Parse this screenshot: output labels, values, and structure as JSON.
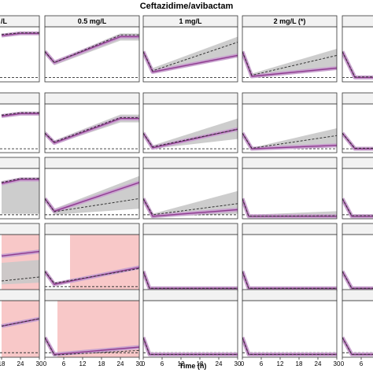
{
  "figure_title": "Ceftazidime/avibactam",
  "x_axis_label": "Time (h)",
  "column_labels": [
    "/L",
    "0.5 mg/L",
    "1 mg/L",
    "2 mg/L (*)",
    ""
  ],
  "colors": {
    "purple_band": "#c9a3cf",
    "purple_line": "#8e3a8f",
    "grey_band": "#c8c8c8",
    "dashed_line": "#333333",
    "red_shade": "#f8c8c8",
    "strip_bg": "#f2f2f2"
  },
  "chart_data": {
    "type": "line",
    "title": "Ceftazidime/avibactam",
    "xlabel": "Time (h)",
    "ylabel": "",
    "xlim": [
      0,
      30
    ],
    "x_ticks": [
      0,
      6,
      12,
      18,
      24,
      30
    ],
    "ylim": [
      0,
      1
    ],
    "grid": false,
    "columns": [
      "/L",
      "0.5 mg/L",
      "1 mg/L",
      "2 mg/L (*)",
      ""
    ],
    "rows": 5,
    "panels": [
      {
        "row": 0,
        "col": 0,
        "visible_from": 18,
        "purple": [
          [
            18,
            0.84
          ],
          [
            24,
            0.88
          ],
          [
            30,
            0.88
          ]
        ],
        "dashed": [
          [
            18,
            0.86
          ],
          [
            24,
            0.89
          ],
          [
            30,
            0.89
          ]
        ],
        "grey_upper": null,
        "grey_lower": null,
        "red_shade": null,
        "dashed_baseline": 0.08
      },
      {
        "row": 0,
        "col": 1,
        "purple": [
          [
            0,
            0.55
          ],
          [
            3,
            0.35
          ],
          [
            24,
            0.82
          ],
          [
            30,
            0.82
          ]
        ],
        "dashed": [
          [
            0,
            0.55
          ],
          [
            3,
            0.35
          ],
          [
            24,
            0.85
          ],
          [
            30,
            0.85
          ]
        ],
        "grey_upper": [
          [
            0,
            0.58
          ],
          [
            3,
            0.38
          ],
          [
            24,
            0.88
          ],
          [
            30,
            0.88
          ]
        ],
        "grey_lower": [
          [
            0,
            0.5
          ],
          [
            3,
            0.3
          ],
          [
            24,
            0.75
          ],
          [
            30,
            0.75
          ]
        ],
        "red_shade": null,
        "dashed_baseline": 0.08
      },
      {
        "row": 0,
        "col": 2,
        "purple": [
          [
            0,
            0.55
          ],
          [
            3,
            0.18
          ],
          [
            30,
            0.48
          ]
        ],
        "dashed": [
          [
            0,
            0.55
          ],
          [
            3,
            0.2
          ],
          [
            30,
            0.72
          ]
        ],
        "grey_upper": [
          [
            0,
            0.58
          ],
          [
            3,
            0.25
          ],
          [
            30,
            0.82
          ]
        ],
        "grey_lower": [
          [
            0,
            0.5
          ],
          [
            3,
            0.15
          ],
          [
            30,
            0.45
          ]
        ],
        "red_shade": null,
        "dashed_baseline": 0.08
      },
      {
        "row": 0,
        "col": 3,
        "purple": [
          [
            0,
            0.55
          ],
          [
            3,
            0.1
          ],
          [
            30,
            0.25
          ]
        ],
        "dashed": [
          [
            0,
            0.55
          ],
          [
            3,
            0.12
          ],
          [
            30,
            0.48
          ]
        ],
        "grey_upper": [
          [
            0,
            0.58
          ],
          [
            3,
            0.15
          ],
          [
            30,
            0.6
          ]
        ],
        "grey_lower": [
          [
            0,
            0.5
          ],
          [
            3,
            0.08
          ],
          [
            30,
            0.22
          ]
        ],
        "red_shade": null,
        "dashed_baseline": 0.08
      },
      {
        "row": 0,
        "col": 4,
        "visible_to": 12,
        "purple": [
          [
            0,
            0.55
          ],
          [
            4,
            0.08
          ],
          [
            12,
            0.08
          ]
        ],
        "dashed": [
          [
            0,
            0.55
          ],
          [
            4,
            0.09
          ],
          [
            12,
            0.09
          ]
        ],
        "grey_upper": null,
        "grey_lower": null,
        "red_shade": null,
        "dashed_baseline": 0.08
      },
      {
        "row": 1,
        "col": 0,
        "visible_from": 18,
        "purple": [
          [
            18,
            0.75
          ],
          [
            24,
            0.8
          ],
          [
            30,
            0.8
          ]
        ],
        "dashed": [
          [
            18,
            0.77
          ],
          [
            24,
            0.82
          ],
          [
            30,
            0.82
          ]
        ],
        "grey_upper": null,
        "grey_lower": null,
        "red_shade": null,
        "dashed_baseline": 0.08
      },
      {
        "row": 1,
        "col": 1,
        "purple": [
          [
            0,
            0.4
          ],
          [
            3,
            0.2
          ],
          [
            24,
            0.7
          ],
          [
            30,
            0.7
          ]
        ],
        "dashed": [
          [
            0,
            0.4
          ],
          [
            3,
            0.22
          ],
          [
            24,
            0.72
          ],
          [
            30,
            0.72
          ]
        ],
        "grey_upper": [
          [
            0,
            0.45
          ],
          [
            3,
            0.25
          ],
          [
            24,
            0.78
          ],
          [
            30,
            0.78
          ]
        ],
        "grey_lower": [
          [
            0,
            0.36
          ],
          [
            3,
            0.17
          ],
          [
            24,
            0.62
          ],
          [
            30,
            0.62
          ]
        ],
        "red_shade": null,
        "dashed_baseline": 0.08
      },
      {
        "row": 1,
        "col": 2,
        "purple": [
          [
            0,
            0.4
          ],
          [
            3,
            0.1
          ],
          [
            30,
            0.48
          ]
        ],
        "dashed": [
          [
            0,
            0.4
          ],
          [
            3,
            0.12
          ],
          [
            30,
            0.48
          ]
        ],
        "grey_upper": [
          [
            0,
            0.45
          ],
          [
            3,
            0.15
          ],
          [
            30,
            0.7
          ]
        ],
        "grey_lower": [
          [
            0,
            0.35
          ],
          [
            3,
            0.08
          ],
          [
            30,
            0.28
          ]
        ],
        "red_shade": null,
        "dashed_baseline": 0.08
      },
      {
        "row": 1,
        "col": 3,
        "purple": [
          [
            0,
            0.4
          ],
          [
            3,
            0.08
          ],
          [
            30,
            0.15
          ]
        ],
        "dashed": [
          [
            0,
            0.4
          ],
          [
            3,
            0.09
          ],
          [
            30,
            0.35
          ]
        ],
        "grey_upper": [
          [
            0,
            0.43
          ],
          [
            3,
            0.1
          ],
          [
            30,
            0.5
          ]
        ],
        "grey_lower": [
          [
            0,
            0.36
          ],
          [
            3,
            0.07
          ],
          [
            30,
            0.12
          ]
        ],
        "red_shade": null,
        "dashed_baseline": 0.08
      },
      {
        "row": 1,
        "col": 4,
        "visible_to": 12,
        "purple": [
          [
            0,
            0.4
          ],
          [
            4,
            0.08
          ],
          [
            12,
            0.08
          ]
        ],
        "dashed": [
          [
            0,
            0.4
          ],
          [
            4,
            0.09
          ],
          [
            12,
            0.09
          ]
        ],
        "grey_upper": null,
        "grey_lower": null,
        "red_shade": null,
        "dashed_baseline": 0.08
      },
      {
        "row": 2,
        "col": 0,
        "visible_from": 18,
        "purple": [
          [
            18,
            0.7
          ],
          [
            24,
            0.78
          ],
          [
            30,
            0.78
          ]
        ],
        "dashed": [
          [
            18,
            0.72
          ],
          [
            24,
            0.8
          ],
          [
            30,
            0.8
          ]
        ],
        "grey_upper": [
          [
            18,
            0.75
          ],
          [
            24,
            0.82
          ],
          [
            30,
            0.82
          ]
        ],
        "grey_lower": [
          [
            18,
            0.1
          ],
          [
            24,
            0.1
          ],
          [
            30,
            0.1
          ]
        ],
        "red_shade": null,
        "dashed_baseline": 0.08
      },
      {
        "row": 2,
        "col": 1,
        "purple": [
          [
            0,
            0.4
          ],
          [
            3,
            0.15
          ],
          [
            30,
            0.72
          ]
        ],
        "dashed": [
          [
            0,
            0.4
          ],
          [
            3,
            0.14
          ],
          [
            30,
            0.4
          ]
        ],
        "grey_upper": [
          [
            0,
            0.43
          ],
          [
            3,
            0.2
          ],
          [
            30,
            0.85
          ]
        ],
        "grey_lower": [
          [
            0,
            0.35
          ],
          [
            3,
            0.08
          ],
          [
            30,
            0.2
          ]
        ],
        "red_shade": null,
        "dashed_baseline": 0.08
      },
      {
        "row": 2,
        "col": 2,
        "purple": [
          [
            0,
            0.4
          ],
          [
            3,
            0.05
          ],
          [
            30,
            0.18
          ]
        ],
        "dashed": [
          [
            0,
            0.4
          ],
          [
            3,
            0.08
          ],
          [
            30,
            0.3
          ]
        ],
        "grey_upper": [
          [
            0,
            0.43
          ],
          [
            3,
            0.1
          ],
          [
            30,
            0.55
          ]
        ],
        "grey_lower": [
          [
            0,
            0.35
          ],
          [
            3,
            0.03
          ],
          [
            30,
            0.1
          ]
        ],
        "red_shade": null,
        "dashed_baseline": 0.08
      },
      {
        "row": 2,
        "col": 3,
        "purple": [
          [
            0,
            0.4
          ],
          [
            2,
            0.05
          ],
          [
            30,
            0.05
          ]
        ],
        "dashed": [
          [
            0,
            0.4
          ],
          [
            2,
            0.05
          ],
          [
            30,
            0.06
          ]
        ],
        "grey_upper": [
          [
            0,
            0.43
          ],
          [
            2,
            0.08
          ],
          [
            30,
            0.15
          ]
        ],
        "grey_lower": [
          [
            0,
            0.35
          ],
          [
            2,
            0.03
          ],
          [
            30,
            0.03
          ]
        ],
        "red_shade": null,
        "dashed_baseline": 0.08
      },
      {
        "row": 2,
        "col": 4,
        "visible_to": 12,
        "purple": [
          [
            0,
            0.4
          ],
          [
            3,
            0.05
          ],
          [
            12,
            0.05
          ]
        ],
        "dashed": [
          [
            0,
            0.4
          ],
          [
            3,
            0.06
          ],
          [
            12,
            0.06
          ]
        ],
        "grey_upper": null,
        "grey_lower": null,
        "red_shade": null,
        "dashed_baseline": 0.08
      },
      {
        "row": 3,
        "col": 0,
        "visible_from": 18,
        "purple": [
          [
            18,
            0.62
          ],
          [
            30,
            0.7
          ]
        ],
        "dashed": [
          [
            18,
            0.18
          ],
          [
            30,
            0.25
          ]
        ],
        "grey_upper": [
          [
            18,
            0.5
          ],
          [
            30,
            0.55
          ]
        ],
        "grey_lower": [
          [
            18,
            0.12
          ],
          [
            30,
            0.15
          ]
        ],
        "red_shade": [
          18,
          30
        ],
        "dashed_baseline": null
      },
      {
        "row": 3,
        "col": 1,
        "purple": [
          [
            0,
            0.35
          ],
          [
            3,
            0.12
          ],
          [
            30,
            0.42
          ]
        ],
        "dashed": [
          [
            0,
            0.35
          ],
          [
            3,
            0.14
          ],
          [
            30,
            0.4
          ]
        ],
        "grey_upper": null,
        "grey_lower": null,
        "red_shade": [
          8,
          30
        ],
        "dashed_baseline": 0.08
      },
      {
        "row": 3,
        "col": 2,
        "purple": [
          [
            0,
            0.35
          ],
          [
            2,
            0.05
          ],
          [
            30,
            0.05
          ]
        ],
        "dashed": [
          [
            0,
            0.35
          ],
          [
            2,
            0.05
          ],
          [
            30,
            0.05
          ]
        ],
        "grey_upper": null,
        "grey_lower": null,
        "red_shade": null,
        "dashed_baseline": null
      },
      {
        "row": 3,
        "col": 3,
        "purple": [
          [
            0,
            0.35
          ],
          [
            2,
            0.05
          ],
          [
            30,
            0.05
          ]
        ],
        "dashed": [
          [
            0,
            0.35
          ],
          [
            2,
            0.05
          ],
          [
            30,
            0.05
          ]
        ],
        "grey_upper": null,
        "grey_lower": null,
        "red_shade": null,
        "dashed_baseline": null
      },
      {
        "row": 3,
        "col": 4,
        "visible_to": 12,
        "purple": [
          [
            0,
            0.35
          ],
          [
            3,
            0.05
          ],
          [
            12,
            0.05
          ]
        ],
        "dashed": [
          [
            0,
            0.35
          ],
          [
            3,
            0.05
          ],
          [
            12,
            0.05
          ]
        ],
        "grey_upper": null,
        "grey_lower": null,
        "red_shade": null,
        "dashed_baseline": null
      },
      {
        "row": 4,
        "col": 0,
        "visible_from": 18,
        "purple": [
          [
            18,
            0.55
          ],
          [
            30,
            0.68
          ]
        ],
        "dashed": [
          [
            18,
            0.55
          ],
          [
            30,
            0.68
          ]
        ],
        "grey_upper": null,
        "grey_lower": null,
        "red_shade": [
          18,
          30
        ],
        "dashed_baseline": 0.08
      },
      {
        "row": 4,
        "col": 1,
        "purple": [
          [
            0,
            0.35
          ],
          [
            3,
            0.05
          ],
          [
            30,
            0.18
          ]
        ],
        "dashed": [
          [
            0,
            0.35
          ],
          [
            3,
            0.04
          ],
          [
            30,
            0.12
          ]
        ],
        "grey_upper": null,
        "grey_lower": null,
        "red_shade": [
          4,
          30
        ],
        "dashed_baseline": 0.08
      },
      {
        "row": 4,
        "col": 2,
        "purple": [
          [
            0,
            0.35
          ],
          [
            2,
            0.05
          ],
          [
            30,
            0.05
          ]
        ],
        "dashed": [
          [
            0,
            0.35
          ],
          [
            2,
            0.05
          ],
          [
            30,
            0.05
          ]
        ],
        "grey_upper": null,
        "grey_lower": null,
        "red_shade": null,
        "dashed_baseline": 0.08
      },
      {
        "row": 4,
        "col": 3,
        "purple": [
          [
            0,
            0.35
          ],
          [
            2,
            0.05
          ],
          [
            30,
            0.05
          ]
        ],
        "dashed": [
          [
            0,
            0.35
          ],
          [
            2,
            0.05
          ],
          [
            30,
            0.05
          ]
        ],
        "grey_upper": null,
        "grey_lower": null,
        "red_shade": null,
        "dashed_baseline": 0.08
      },
      {
        "row": 4,
        "col": 4,
        "visible_to": 12,
        "purple": [
          [
            0,
            0.35
          ],
          [
            3,
            0.05
          ],
          [
            12,
            0.05
          ]
        ],
        "dashed": [
          [
            0,
            0.35
          ],
          [
            3,
            0.05
          ],
          [
            12,
            0.05
          ]
        ],
        "grey_upper": null,
        "grey_lower": null,
        "red_shade": null,
        "dashed_baseline": 0.08
      }
    ]
  }
}
